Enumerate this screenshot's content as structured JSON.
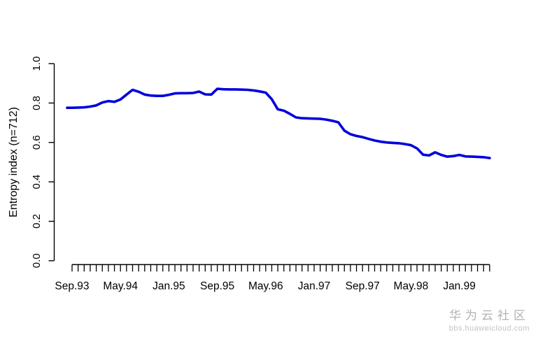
{
  "chart_data": {
    "type": "line",
    "title": "",
    "xlabel": "",
    "ylabel": "Entropy index (n=712)",
    "ylim": [
      0.0,
      1.0
    ],
    "yticks": [
      0.0,
      0.2,
      0.4,
      0.6,
      0.8,
      1.0
    ],
    "x_tick_labels": [
      "Sep.93",
      "May.94",
      "Jan.95",
      "Sep.95",
      "May.96",
      "Jan.97",
      "Sep.97",
      "May.98",
      "Jan.99"
    ],
    "minor_ticks_per_label": 8,
    "x_start_label": "Sep.93",
    "x_frequency": "monthly",
    "n_points": 70,
    "line_color": "#0000DD",
    "axis_color": "#000000",
    "grid": false,
    "legend": null,
    "values": [
      0.776,
      0.777,
      0.778,
      0.782,
      0.788,
      0.803,
      0.81,
      0.806,
      0.818,
      0.843,
      0.867,
      0.857,
      0.843,
      0.838,
      0.836,
      0.836,
      0.842,
      0.849,
      0.85,
      0.85,
      0.851,
      0.858,
      0.844,
      0.843,
      0.872,
      0.87,
      0.869,
      0.869,
      0.868,
      0.867,
      0.864,
      0.859,
      0.853,
      0.82,
      0.768,
      0.761,
      0.745,
      0.727,
      0.723,
      0.722,
      0.721,
      0.72,
      0.716,
      0.71,
      0.702,
      0.66,
      0.642,
      0.633,
      0.627,
      0.618,
      0.61,
      0.604,
      0.6,
      0.598,
      0.596,
      0.592,
      0.586,
      0.57,
      0.538,
      0.534,
      0.55,
      0.537,
      0.528,
      0.531,
      0.537,
      0.529,
      0.528,
      0.527,
      0.525,
      0.521
    ]
  },
  "watermark": {
    "line1": "华为云社区",
    "line2": "bbs.huaweicloud.com",
    "color": "#b2b2b2"
  }
}
